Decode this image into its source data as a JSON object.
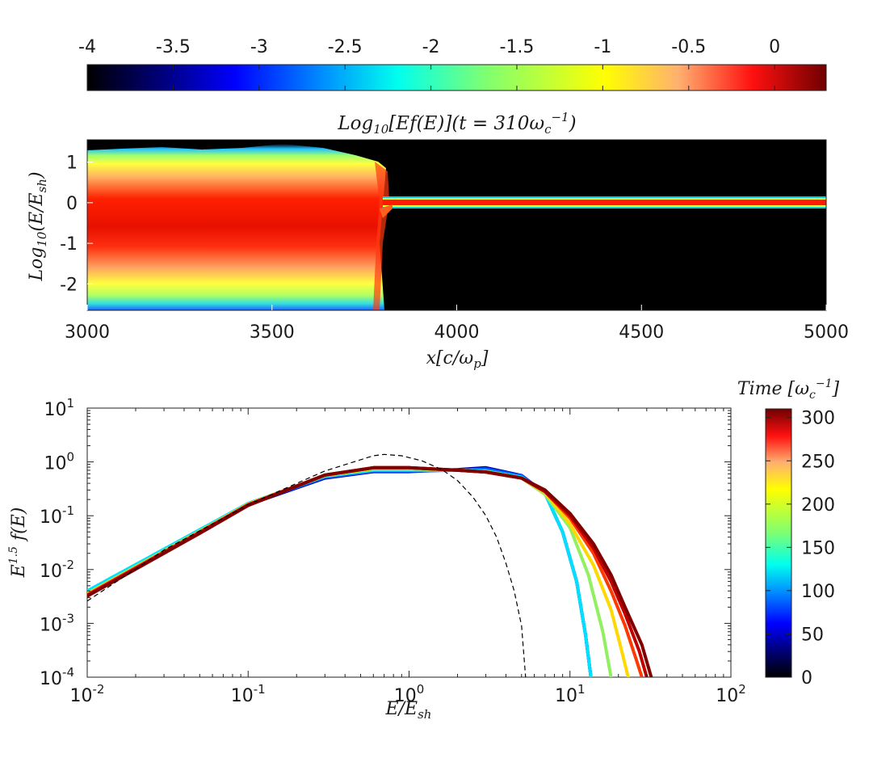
{
  "chart_data": [
    {
      "type": "colorbar",
      "orientation": "horizontal",
      "colormap": "jet",
      "range": [
        -4,
        0.3
      ],
      "tick_labels": [
        "-4",
        "-3.5",
        "-3",
        "-2.5",
        "-2",
        "-1.5",
        "-1",
        "-0.5",
        "0"
      ],
      "ticks": [
        -4,
        -3.5,
        -3,
        -2.5,
        -2,
        -1.5,
        -1,
        -0.5,
        0
      ]
    },
    {
      "type": "heatmap",
      "title": "Log10[Ef(E)](t = 310ωc^-1)",
      "xlabel": "x[c/ωp]",
      "ylabel": "Log10(E/Esh)",
      "xlim": [
        3000,
        5000
      ],
      "ylim": [
        -2.65,
        1.55
      ],
      "x_ticks": [
        3000,
        3500,
        4000,
        4500,
        5000
      ],
      "x_tick_labels": [
        "3000",
        "3500",
        "4000",
        "4500",
        "5000"
      ],
      "y_ticks": [
        1,
        0,
        -1,
        -2
      ],
      "y_tick_labels": [
        "1",
        "0",
        "-1",
        "-2"
      ],
      "shock_position": 3800,
      "upstream_band_log10E": [
        -0.12,
        0.08
      ]
    },
    {
      "type": "line",
      "xscale": "log",
      "yscale": "log",
      "xlabel": "E/Esh",
      "ylabel": "E^1.5 f(E)",
      "xlim": [
        0.01,
        100
      ],
      "ylim": [
        0.0001,
        10
      ],
      "x_tick_labels": [
        "10^-2",
        "10^-1",
        "10^0",
        "10^1",
        "10^2"
      ],
      "y_tick_labels": [
        "10^1",
        "10^0",
        "10^-1",
        "10^-2",
        "10^-3",
        "10^-4"
      ],
      "colorbar": {
        "label": "Time [ωc^-1]",
        "range": [
          0,
          310
        ],
        "ticks": [
          0,
          50,
          100,
          150,
          200,
          250,
          300
        ],
        "tick_labels": [
          "0",
          "50",
          "100",
          "150",
          "200",
          "250",
          "300"
        ],
        "colormap": "jet"
      },
      "series": [
        {
          "time": 30,
          "color": "#0000b0",
          "x": [
            0.01,
            0.05,
            0.1,
            0.3,
            0.6,
            1,
            2,
            3,
            5,
            7,
            9,
            11,
            12.5,
            13.5
          ],
          "y": [
            0.0034,
            0.048,
            0.16,
            0.5,
            0.66,
            0.66,
            0.72,
            0.78,
            0.56,
            0.26,
            0.05,
            0.006,
            0.0006,
            0.0001
          ]
        },
        {
          "time": 60,
          "color": "#0060ff",
          "x": [
            0.01,
            0.05,
            0.1,
            0.3,
            0.6,
            1,
            2,
            3,
            5,
            7,
            9,
            11,
            12.5,
            13.5
          ],
          "y": [
            0.0038,
            0.05,
            0.165,
            0.52,
            0.68,
            0.68,
            0.7,
            0.74,
            0.55,
            0.26,
            0.05,
            0.006,
            0.0006,
            0.0001
          ]
        },
        {
          "time": 90,
          "color": "#00e0ff",
          "x": [
            0.01,
            0.05,
            0.1,
            0.3,
            0.6,
            1,
            2,
            3,
            5,
            7,
            9,
            11,
            12.5,
            13.5
          ],
          "y": [
            0.004,
            0.055,
            0.17,
            0.54,
            0.7,
            0.7,
            0.7,
            0.68,
            0.52,
            0.26,
            0.05,
            0.006,
            0.0006,
            0.0001
          ]
        },
        {
          "time": 150,
          "color": "#90f060",
          "x": [
            0.01,
            0.05,
            0.1,
            0.3,
            0.6,
            1,
            2,
            3,
            5,
            7,
            10,
            13,
            16,
            18
          ],
          "y": [
            0.0036,
            0.052,
            0.165,
            0.56,
            0.74,
            0.74,
            0.7,
            0.66,
            0.5,
            0.25,
            0.06,
            0.008,
            0.0007,
            0.0001
          ]
        },
        {
          "time": 210,
          "color": "#ffd800",
          "x": [
            0.01,
            0.05,
            0.1,
            0.3,
            0.6,
            1,
            2,
            3,
            5,
            7,
            10,
            14,
            18,
            21,
            23
          ],
          "y": [
            0.0035,
            0.05,
            0.165,
            0.56,
            0.76,
            0.76,
            0.7,
            0.66,
            0.5,
            0.27,
            0.07,
            0.012,
            0.0018,
            0.0003,
            0.0001
          ]
        },
        {
          "time": 260,
          "color": "#ff3a00",
          "x": [
            0.01,
            0.05,
            0.1,
            0.3,
            0.6,
            1,
            2,
            3,
            5,
            7,
            10,
            14,
            18,
            22,
            26,
            28
          ],
          "y": [
            0.0034,
            0.05,
            0.16,
            0.57,
            0.78,
            0.78,
            0.7,
            0.65,
            0.5,
            0.28,
            0.09,
            0.02,
            0.004,
            0.0009,
            0.0002,
            0.0001
          ]
        },
        {
          "time": 290,
          "color": "#c00000",
          "x": [
            0.01,
            0.05,
            0.1,
            0.3,
            0.6,
            1,
            2,
            3,
            5,
            7,
            10,
            14,
            18,
            22,
            27,
            30
          ],
          "y": [
            0.0033,
            0.048,
            0.16,
            0.57,
            0.78,
            0.78,
            0.7,
            0.65,
            0.5,
            0.28,
            0.1,
            0.025,
            0.006,
            0.0015,
            0.0003,
            0.0001
          ]
        },
        {
          "time": 310,
          "color": "#800000",
          "x": [
            0.01,
            0.05,
            0.1,
            0.3,
            0.6,
            1,
            2,
            3,
            5,
            7,
            10,
            14,
            18,
            22,
            28,
            32
          ],
          "y": [
            0.0032,
            0.047,
            0.155,
            0.57,
            0.78,
            0.78,
            0.7,
            0.65,
            0.5,
            0.3,
            0.11,
            0.03,
            0.008,
            0.002,
            0.0004,
            0.0001
          ]
        }
      ],
      "reference_curve": {
        "style": "dashed",
        "color": "#000000",
        "x": [
          0.01,
          0.03,
          0.1,
          0.3,
          0.6,
          0.7,
          0.9,
          1.2,
          1.6,
          2,
          2.5,
          3,
          3.5,
          4,
          4.5,
          5,
          5.3
        ],
        "y": [
          0.0026,
          0.023,
          0.16,
          0.68,
          1.3,
          1.38,
          1.3,
          1.05,
          0.72,
          0.45,
          0.22,
          0.1,
          0.04,
          0.013,
          0.004,
          0.0009,
          0.0001
        ]
      }
    }
  ]
}
